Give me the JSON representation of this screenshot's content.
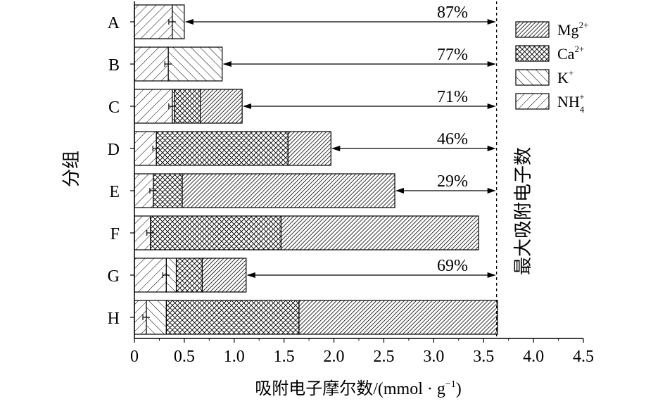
{
  "chart_data": {
    "type": "bar",
    "orientation": "horizontal",
    "stacked": true,
    "ylabel": "分组",
    "xlabel_main": "吸附电子摩尔数/(mmol · g",
    "xlabel_sup": "−1",
    "xlabel_end": ")",
    "xlim": [
      0,
      4.5
    ],
    "xticks": [
      "0",
      "0.5",
      "1.0",
      "1.5",
      "2.0",
      "2.5",
      "3.0",
      "3.5",
      "4.0",
      "4.5"
    ],
    "xtick_values": [
      0,
      0.5,
      1.0,
      1.5,
      2.0,
      2.5,
      3.0,
      3.5,
      4.0,
      4.5
    ],
    "categories": [
      "A",
      "B",
      "C",
      "D",
      "E",
      "F",
      "G",
      "H"
    ],
    "series": [
      {
        "name": "NH4+",
        "values": [
          0.38,
          0.34,
          0.38,
          0.22,
          0.19,
          0.16,
          0.32,
          0.12
        ]
      },
      {
        "name": "K+",
        "values": [
          0.12,
          0.54,
          0.02,
          0.0,
          0.0,
          0.0,
          0.1,
          0.2
        ]
      },
      {
        "name": "Ca2+",
        "values": [
          0.0,
          0.0,
          0.26,
          1.32,
          0.29,
          1.31,
          0.26,
          1.33
        ]
      },
      {
        "name": "Mg2+",
        "values": [
          0.0,
          0.0,
          0.42,
          0.43,
          2.13,
          1.98,
          0.44,
          1.99
        ]
      }
    ],
    "max_line": {
      "value": 3.63,
      "label": "最大吸附电子数"
    },
    "annotations": [
      "87%",
      "77%",
      "71%",
      "46%",
      "29%",
      "",
      "69%",
      ""
    ]
  },
  "legend": [
    {
      "base": "Mg",
      "sup": "2+",
      "sub": ""
    },
    {
      "base": "Ca",
      "sup": "2+",
      "sub": ""
    },
    {
      "base": "K",
      "sup": "+",
      "sub": ""
    },
    {
      "base": "NH",
      "sup": "+",
      "sub": "4"
    }
  ]
}
